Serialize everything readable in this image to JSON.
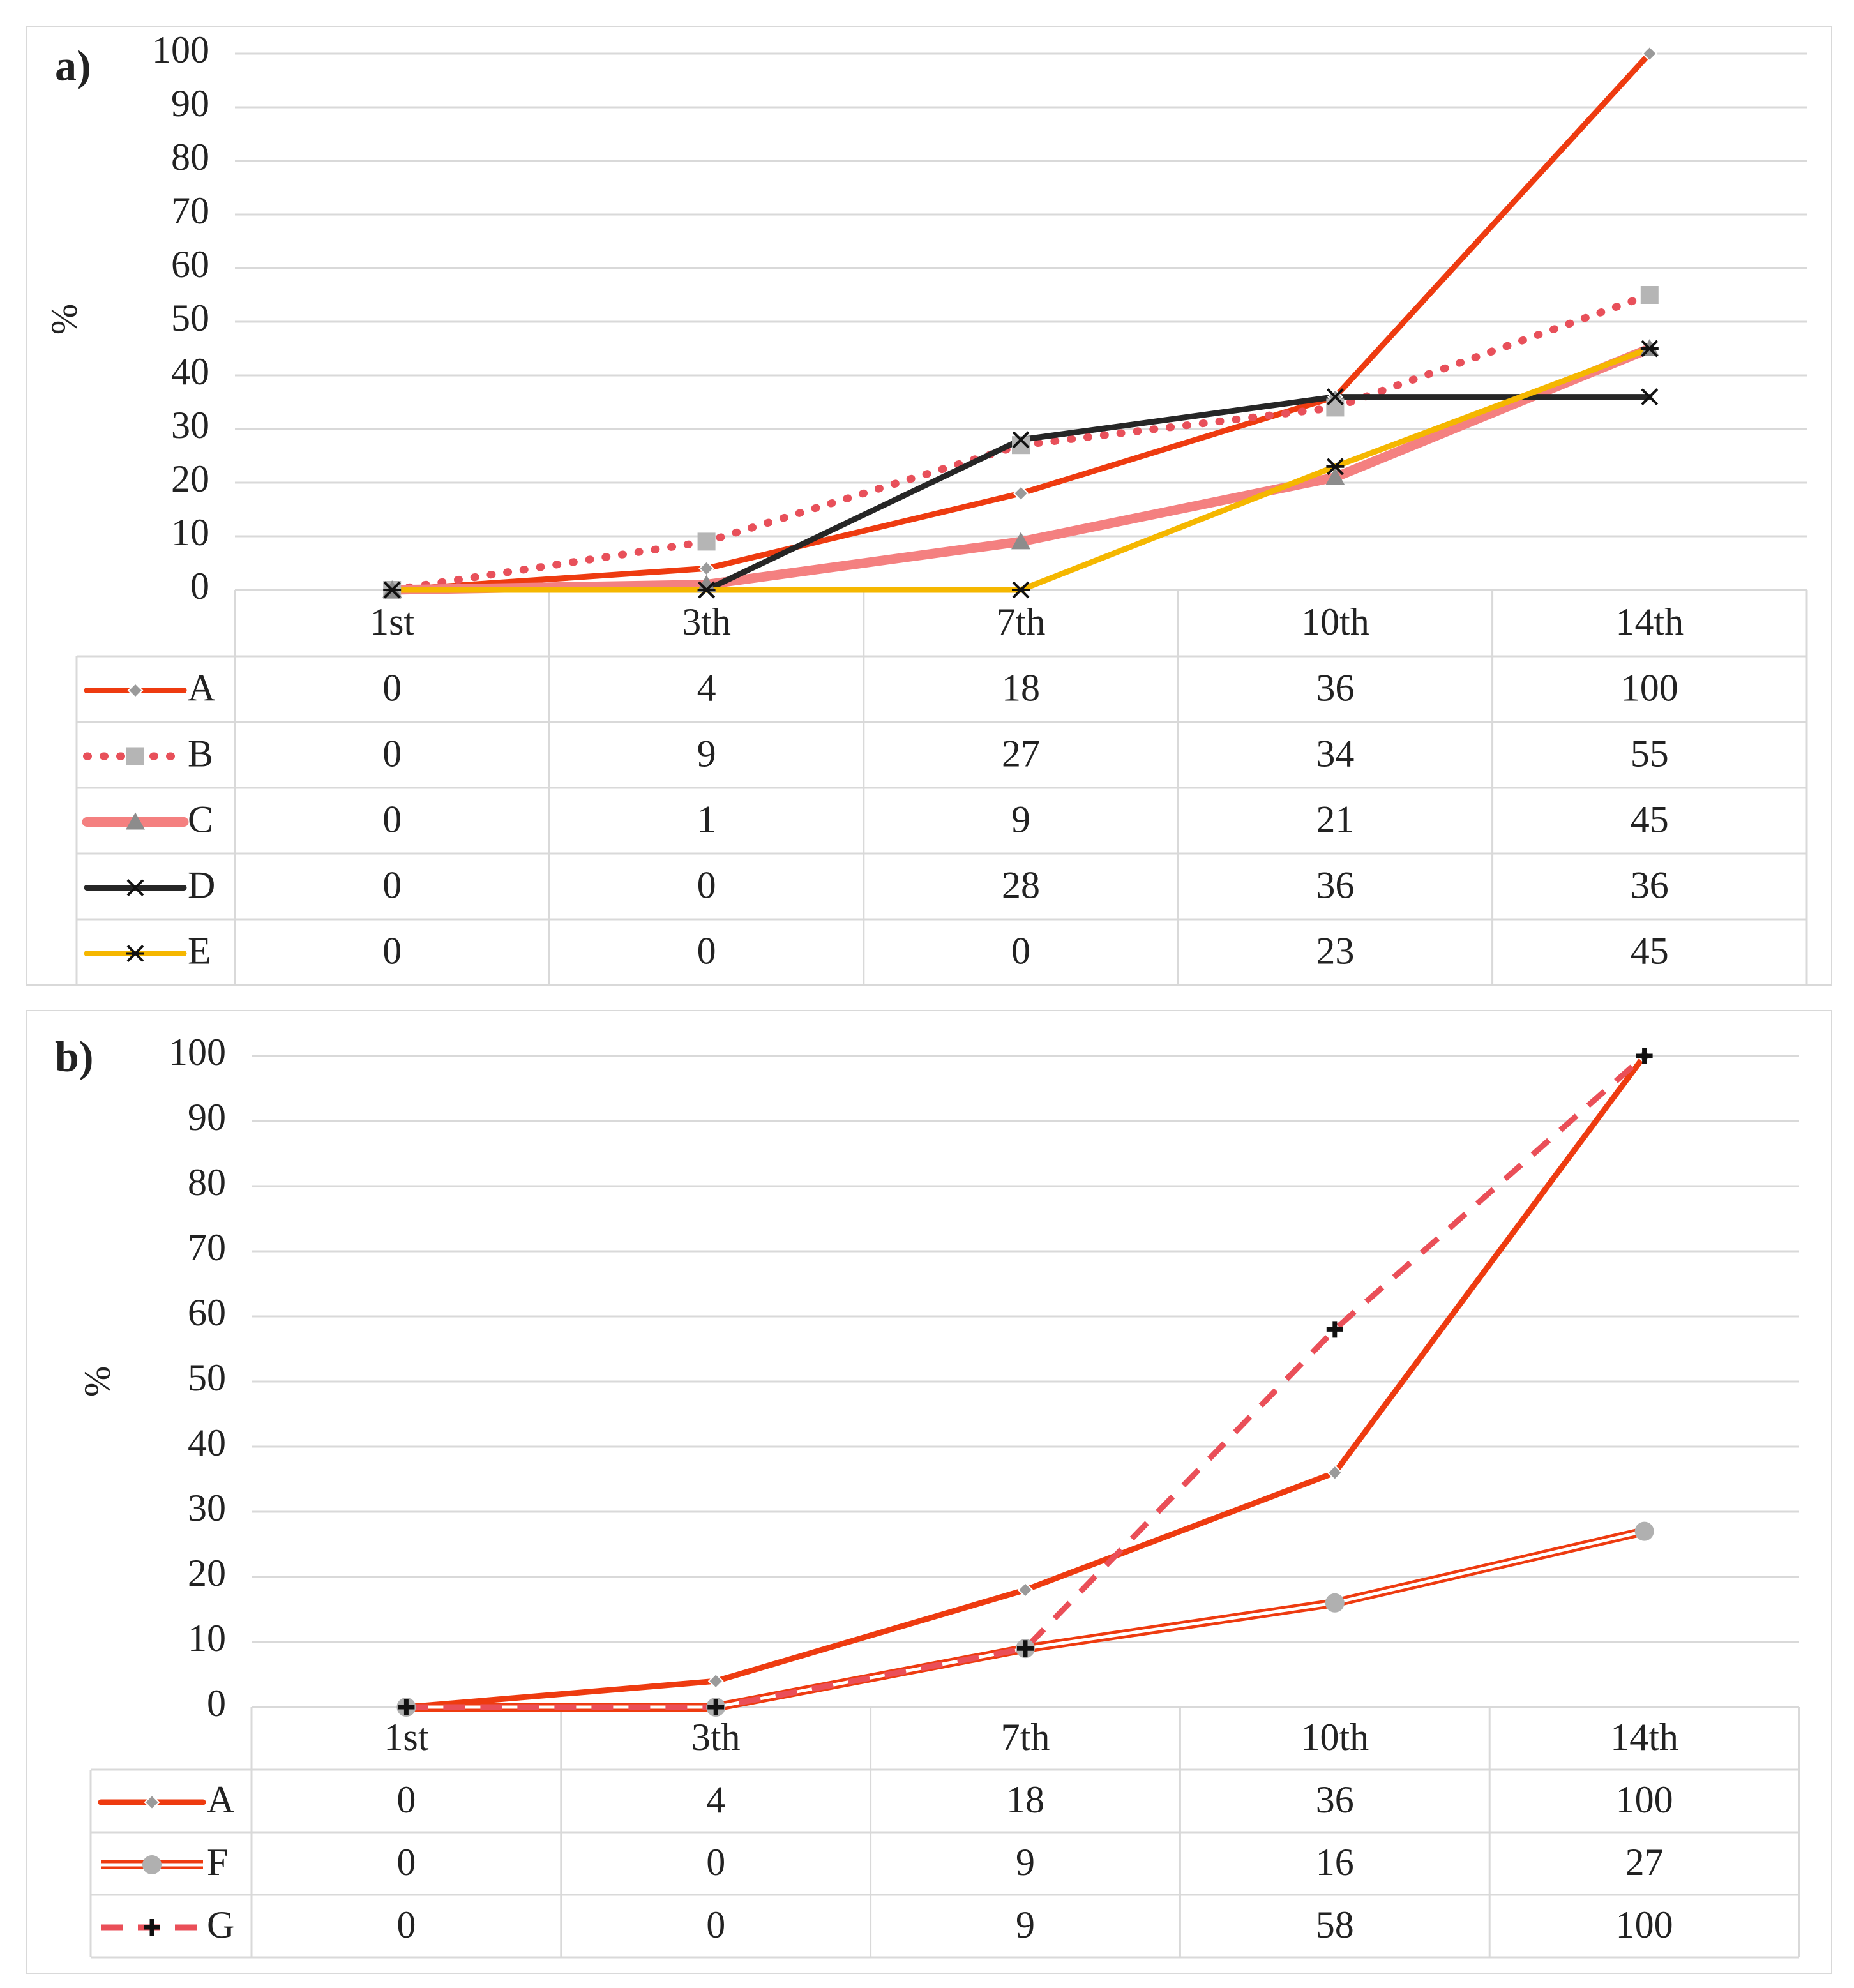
{
  "chart_data": [
    {
      "type": "line",
      "panel_label": "a)",
      "ylabel": "%",
      "ylim": [
        0,
        100
      ],
      "yticks": [
        0,
        10,
        20,
        30,
        40,
        50,
        60,
        70,
        80,
        90,
        100
      ],
      "categories": [
        "1st",
        "3th",
        "7th",
        "10th",
        "14th"
      ],
      "grid": true,
      "legend": "data-table-below",
      "series": [
        {
          "name": "A",
          "values": [
            0,
            4,
            18,
            36,
            100
          ],
          "color": "#ee3b10",
          "style": "solid",
          "marker": "diamond",
          "marker_color": "#9a9a9a"
        },
        {
          "name": "B",
          "values": [
            0,
            9,
            27,
            34,
            55
          ],
          "color": "#e8505a",
          "style": "dotted",
          "marker": "square",
          "marker_color": "#b5b5b5"
        },
        {
          "name": "C",
          "values": [
            0,
            1,
            9,
            21,
            45
          ],
          "color": "#f48080",
          "style": "solid-thick",
          "marker": "triangle",
          "marker_color": "#8c8c8c"
        },
        {
          "name": "D",
          "values": [
            0,
            0,
            28,
            36,
            36
          ],
          "color": "#262626",
          "style": "solid",
          "marker": "x",
          "marker_color": "#111111"
        },
        {
          "name": "E",
          "values": [
            0,
            0,
            0,
            23,
            45
          ],
          "color": "#f5b700",
          "style": "solid",
          "marker": "asterisk",
          "marker_color": "#111111"
        }
      ]
    },
    {
      "type": "line",
      "panel_label": "b)",
      "ylabel": "%",
      "ylim": [
        0,
        100
      ],
      "yticks": [
        0,
        10,
        20,
        30,
        40,
        50,
        60,
        70,
        80,
        90,
        100
      ],
      "categories": [
        "1st",
        "3th",
        "7th",
        "10th",
        "14th"
      ],
      "grid": true,
      "legend": "data-table-below",
      "series": [
        {
          "name": "A",
          "values": [
            0,
            4,
            18,
            36,
            100
          ],
          "color": "#ee3b10",
          "style": "solid",
          "marker": "diamond",
          "marker_color": "#9a9a9a"
        },
        {
          "name": "F",
          "values": [
            0,
            0,
            9,
            16,
            27
          ],
          "color": "#ee3b10",
          "style": "double",
          "marker": "circle",
          "marker_color": "#b0b0b0"
        },
        {
          "name": "G",
          "values": [
            0,
            0,
            9,
            58,
            100
          ],
          "color": "#ea4f58",
          "style": "dashed",
          "marker": "plus",
          "marker_color": "#111111"
        }
      ]
    }
  ]
}
